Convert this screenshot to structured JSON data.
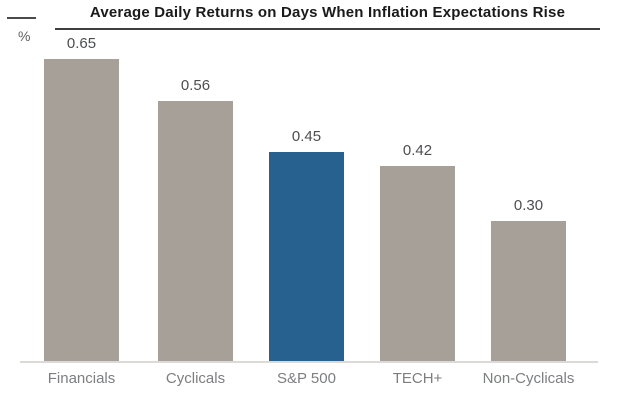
{
  "header": {
    "title": "Average Daily Returns on Days When Inflation Expectations Rise",
    "unit_label": "%"
  },
  "chart_data": {
    "type": "bar",
    "title": "Average Daily Returns on Days When Inflation Expectations Rise",
    "categories": [
      "Financials",
      "Cyclicals",
      "S&P 500",
      "TECH+",
      "Non-Cyclicals"
    ],
    "values": [
      0.65,
      0.56,
      0.45,
      0.42,
      0.3
    ],
    "value_labels": [
      "0.65",
      "0.56",
      "0.45",
      "0.42",
      "0.30"
    ],
    "bar_colors": [
      "#A7A099",
      "#A7A099",
      "#26618F",
      "#A7A099",
      "#A7A099"
    ],
    "highlighted_category": "S&P 500",
    "xlabel": "",
    "ylabel": "%",
    "ylim": [
      0,
      0.73
    ],
    "grid": false,
    "legend": "none"
  },
  "colors": {
    "bar_default": "#A7A099",
    "bar_highlight": "#26618F",
    "title_text": "#1A1A1A",
    "value_label_text": "#4D4E50",
    "category_label_text": "#7D7E80",
    "baseline": "#DCDAD7",
    "title_rule": "#3F3F3F"
  }
}
